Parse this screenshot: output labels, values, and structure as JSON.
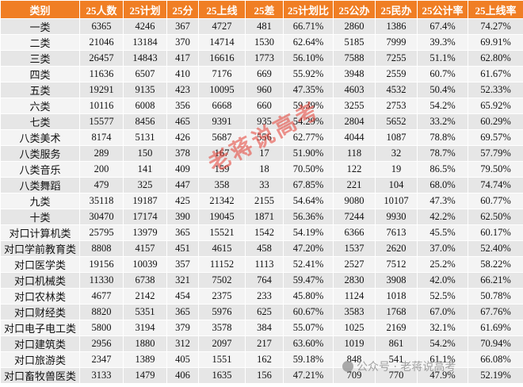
{
  "columns": [
    "类别",
    "25人数",
    "25计划",
    "25分",
    "25上线",
    "25差",
    "25计划比",
    "25公办",
    "25民办",
    "25公计率",
    "25上线率"
  ],
  "rows": [
    [
      "一类",
      "6365",
      "4246",
      "367",
      "4727",
      "481",
      "66.71%",
      "2860",
      "1386",
      "67.4%",
      "74.27%"
    ],
    [
      "二类",
      "21046",
      "13184",
      "370",
      "14714",
      "1530",
      "62.64%",
      "5185",
      "7999",
      "39.3%",
      "69.91%"
    ],
    [
      "三类",
      "26457",
      "14843",
      "417",
      "16616",
      "1773",
      "56.10%",
      "7588",
      "7255",
      "51.1%",
      "62.80%"
    ],
    [
      "四类",
      "11636",
      "6507",
      "410",
      "7176",
      "669",
      "55.92%",
      "3948",
      "2559",
      "60.7%",
      "61.67%"
    ],
    [
      "五类",
      "19291",
      "9135",
      "423",
      "10095",
      "960",
      "47.35%",
      "4603",
      "4532",
      "50.4%",
      "52.33%"
    ],
    [
      "六类",
      "10116",
      "6008",
      "356",
      "6668",
      "660",
      "59.39%",
      "3255",
      "2753",
      "54.2%",
      "65.92%"
    ],
    [
      "七类",
      "15577",
      "8456",
      "465",
      "9391",
      "935",
      "54.29%",
      "2804",
      "5652",
      "33.2%",
      "60.29%"
    ],
    [
      "八类美术",
      "8174",
      "5131",
      "426",
      "5687",
      "556",
      "62.77%",
      "4044",
      "1087",
      "78.8%",
      "69.57%"
    ],
    [
      "八类服务",
      "289",
      "150",
      "378",
      "167",
      "17",
      "51.90%",
      "118",
      "32",
      "78.7%",
      "57.79%"
    ],
    [
      "八类音乐",
      "200",
      "141",
      "409",
      "159",
      "18",
      "70.50%",
      "122",
      "19",
      "86.5%",
      "79.50%"
    ],
    [
      "八类舞蹈",
      "479",
      "325",
      "447",
      "358",
      "33",
      "67.85%",
      "221",
      "104",
      "68.0%",
      "74.74%"
    ],
    [
      "九类",
      "35118",
      "19187",
      "425",
      "21342",
      "2155",
      "54.64%",
      "9080",
      "10107",
      "47.3%",
      "60.77%"
    ],
    [
      "十类",
      "30470",
      "17174",
      "390",
      "19045",
      "1871",
      "56.36%",
      "7244",
      "9930",
      "42.2%",
      "62.50%"
    ],
    [
      "对口计算机类",
      "25795",
      "13979",
      "365",
      "15521",
      "1542",
      "54.19%",
      "6366",
      "7613",
      "45.5%",
      "60.17%"
    ],
    [
      "对口学前教育类",
      "8808",
      "4157",
      "451",
      "4615",
      "458",
      "47.20%",
      "1537",
      "2620",
      "37.0%",
      "52.40%"
    ],
    [
      "对口医学类",
      "19156",
      "10039",
      "357",
      "11152",
      "1113",
      "52.41%",
      "2527",
      "7512",
      "25.2%",
      "58.22%"
    ],
    [
      "对口机械类",
      "11330",
      "6738",
      "321",
      "7502",
      "764",
      "59.47%",
      "2830",
      "3908",
      "42.0%",
      "66.21%"
    ],
    [
      "对口农林类",
      "4677",
      "2142",
      "454",
      "2375",
      "233",
      "45.80%",
      "1124",
      "1018",
      "52.5%",
      "50.78%"
    ],
    [
      "对口财经类",
      "8820",
      "5351",
      "365",
      "5976",
      "625",
      "60.67%",
      "3583",
      "1768",
      "67.0%",
      "67.76%"
    ],
    [
      "对口电子电工类",
      "5800",
      "3194",
      "379",
      "3578",
      "384",
      "55.07%",
      "1025",
      "2169",
      "32.1%",
      "61.69%"
    ],
    [
      "对口建筑类",
      "2956",
      "1880",
      "312",
      "2097",
      "217",
      "63.60%",
      "1019",
      "861",
      "54.2%",
      "70.94%"
    ],
    [
      "对口旅游类",
      "2347",
      "1389",
      "405",
      "1551",
      "162",
      "59.18%",
      "848",
      "541",
      "61.1%",
      "66.08%"
    ],
    [
      "对口畜牧兽医类",
      "3133",
      "1479",
      "406",
      "1635",
      "156",
      "47.21%",
      "709",
      "770",
      "47.9%",
      "52.19%"
    ]
  ],
  "watermark_main": "老蒋说高考",
  "watermark_corner": "公众号 · 老蒋说高考"
}
